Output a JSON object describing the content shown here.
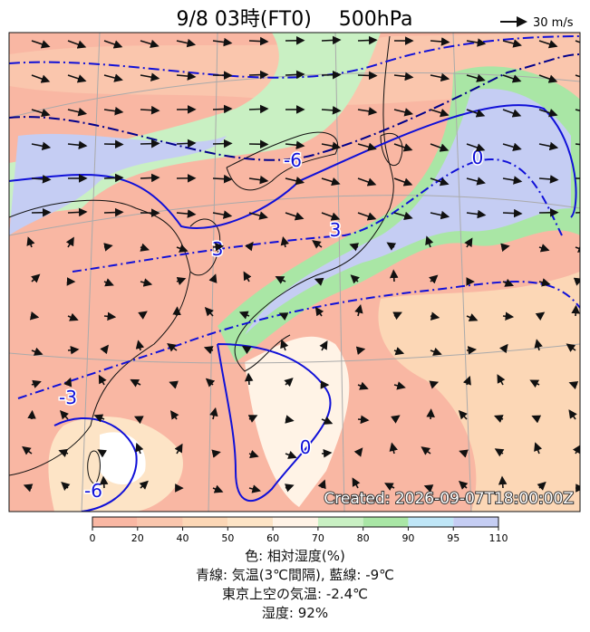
{
  "header": {
    "title": "9/8 03時(FT0)",
    "level": "500hPa",
    "wind_legend": "30 m/s"
  },
  "map": {
    "contour_labels": [
      "-6",
      "3",
      "3",
      "0",
      "-3",
      "0",
      "-6"
    ],
    "created": "Created: 2026-09-07T18:00:00Z"
  },
  "colorbar": {
    "ticks": [
      0,
      20,
      40,
      50,
      60,
      70,
      80,
      90,
      95,
      110
    ],
    "colors": [
      "#f9b7a3",
      "#fac6ad",
      "#fcd7b6",
      "#fde4c6",
      "#fff3e6",
      "#c9f0c3",
      "#a9e6a5",
      "#bfe6f7",
      "#c5cdf3"
    ]
  },
  "captions": [
    "色: 相対湿度(%)",
    "青線: 気温(3℃間隔), 藍線: -9℃",
    "東京上空の気温: -2.4℃",
    "湿度: 92%"
  ]
}
